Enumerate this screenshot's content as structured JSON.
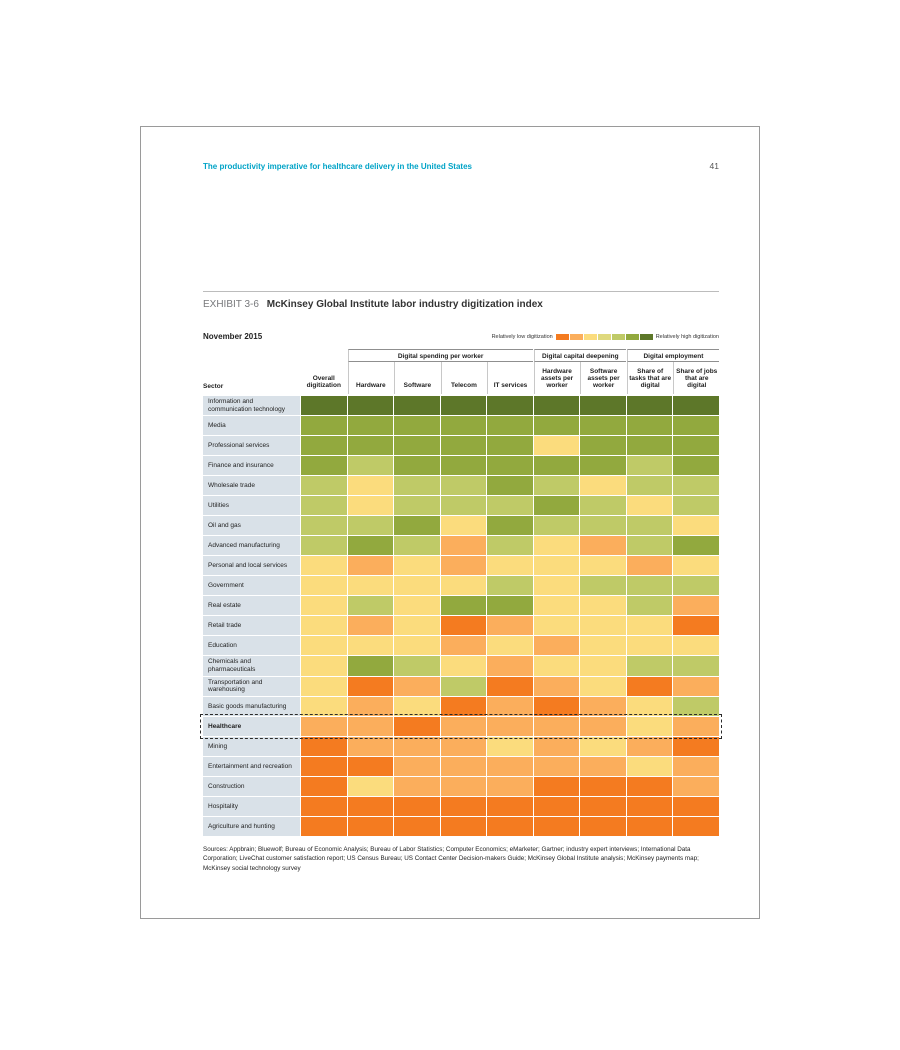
{
  "page": {
    "running_title": "The productivity imperative for healthcare delivery in the United States",
    "page_number": "41"
  },
  "exhibit": {
    "label": "EXHIBIT 3-6",
    "title": "McKinsey Global Institute labor industry digitization index",
    "date_label": "November 2015"
  },
  "legend": {
    "low_label": "Relatively low digitization",
    "high_label": "Relatively high digitization",
    "swatches": [
      "#F47B20",
      "#FBAE5C",
      "#FBDC7D",
      "#DFD97E",
      "#BFCA67",
      "#92A93E",
      "#5D7729"
    ]
  },
  "table": {
    "sector_header": "Sector",
    "groups": [
      {
        "label": "Digital spending per worker",
        "start": 1,
        "span": 4
      },
      {
        "label": "Digital capital deepening",
        "start": 5,
        "span": 2
      },
      {
        "label": "Digital employment",
        "start": 7,
        "span": 2
      }
    ]
  },
  "chart_data": {
    "type": "heatmap",
    "title": "McKinsey Global Institute labor industry digitization index",
    "legend_low": "Relatively low digitization",
    "legend_high": "Relatively high digitization",
    "scale_note": "Ordinal color scale: 1 = relatively low digitization, 7 = relatively high digitization",
    "levels": {
      "1": "#F47B20",
      "2": "#FBAE5C",
      "3": "#FBDC7D",
      "4": "#DFD97E",
      "5": "#BFCA67",
      "6": "#92A93E",
      "7": "#5D7729"
    },
    "columns": [
      "Overall digitization",
      "Hardware",
      "Software",
      "Telecom",
      "IT services",
      "Hardware assets per worker",
      "Software assets per worker",
      "Share of tasks that are digital",
      "Share of jobs that are digital"
    ],
    "rows": [
      "Information and communication technology",
      "Media",
      "Professional services",
      "Finance and insurance",
      "Wholesale trade",
      "Utilities",
      "Oil and gas",
      "Advanced manufacturing",
      "Personal and local services",
      "Government",
      "Real estate",
      "Retail trade",
      "Education",
      "Chemicals and pharmaceuticals",
      "Transportation and warehousing",
      "Basic goods manufacturing",
      "Healthcare",
      "Mining",
      "Entertainment and recreation",
      "Construction",
      "Hospitality",
      "Agriculture and hunting"
    ],
    "highlighted_row": "Healthcare",
    "values": [
      [
        7,
        7,
        7,
        7,
        7,
        7,
        7,
        7,
        7
      ],
      [
        6,
        6,
        6,
        6,
        6,
        6,
        6,
        6,
        6
      ],
      [
        6,
        6,
        6,
        6,
        6,
        3,
        6,
        6,
        6
      ],
      [
        6,
        5,
        6,
        6,
        6,
        6,
        6,
        5,
        6
      ],
      [
        5,
        3,
        5,
        5,
        6,
        5,
        3,
        5,
        5
      ],
      [
        5,
        3,
        5,
        5,
        5,
        6,
        5,
        3,
        5
      ],
      [
        5,
        5,
        6,
        3,
        6,
        5,
        5,
        5,
        3
      ],
      [
        5,
        6,
        5,
        2,
        5,
        3,
        2,
        5,
        6
      ],
      [
        3,
        2,
        3,
        2,
        3,
        3,
        3,
        2,
        3
      ],
      [
        3,
        3,
        3,
        3,
        5,
        3,
        5,
        5,
        5
      ],
      [
        3,
        5,
        3,
        6,
        6,
        3,
        3,
        5,
        2
      ],
      [
        3,
        2,
        3,
        1,
        2,
        3,
        3,
        3,
        1
      ],
      [
        3,
        3,
        3,
        2,
        3,
        2,
        3,
        3,
        3
      ],
      [
        3,
        6,
        5,
        3,
        2,
        3,
        3,
        5,
        5
      ],
      [
        3,
        1,
        2,
        5,
        1,
        2,
        3,
        1,
        2
      ],
      [
        3,
        2,
        3,
        1,
        2,
        1,
        2,
        3,
        5
      ],
      [
        2,
        2,
        1,
        2,
        2,
        2,
        2,
        3,
        2
      ],
      [
        1,
        2,
        2,
        2,
        3,
        2,
        3,
        2,
        1
      ],
      [
        1,
        1,
        2,
        2,
        2,
        2,
        2,
        3,
        2
      ],
      [
        1,
        3,
        2,
        2,
        2,
        1,
        1,
        1,
        2
      ],
      [
        1,
        1,
        1,
        1,
        1,
        1,
        1,
        1,
        1
      ],
      [
        1,
        1,
        1,
        1,
        1,
        1,
        1,
        1,
        1
      ]
    ]
  },
  "sources": "Sources: Appbrain; Bluewolf; Bureau of Economic Analysis; Bureau of Labor Statistics; Computer Economics; eMarketer; Gartner; industry expert interviews; International Data Corporation; LiveChat customer satisfaction report; US Census Bureau; US Contact Center Decision-makers Guide; McKinsey Global Institute analysis; McKinsey payments map; McKinsey social technology survey"
}
